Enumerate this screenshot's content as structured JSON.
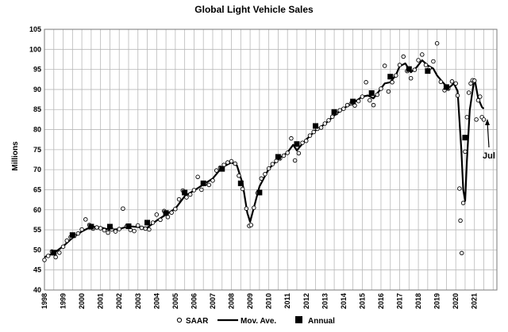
{
  "chart_data": {
    "type": "line",
    "title": "Global Light Vehicle Sales",
    "ylabel": "Millions",
    "xlabel": "",
    "ylim": [
      40,
      105
    ],
    "y_ticks": [
      "40",
      "45",
      "50",
      "55",
      "60",
      "65",
      "70",
      "75",
      "80",
      "85",
      "90",
      "95",
      "100",
      "105"
    ],
    "x_tick_labels": [
      "1998",
      "1999",
      "2000",
      "2001",
      "2002",
      "2003",
      "2004",
      "2005",
      "2006",
      "2007",
      "2008",
      "2009",
      "2010",
      "2011",
      "2012",
      "2013",
      "2014",
      "2015",
      "2016",
      "2017",
      "2018",
      "2019",
      "2020",
      "2021"
    ],
    "xlim": [
      1998,
      2022.2
    ],
    "grid": true,
    "legend_position": "bottom",
    "annotation": "Jul",
    "series": [
      {
        "name": "SAAR",
        "style": "open-circle-markers",
        "points": [
          [
            1998.0,
            47.5
          ],
          [
            1998.2,
            48.5
          ],
          [
            1998.4,
            49.6
          ],
          [
            1998.6,
            48.2
          ],
          [
            1998.8,
            49.3
          ],
          [
            1999.0,
            50.8
          ],
          [
            1999.2,
            52.3
          ],
          [
            1999.4,
            53.2
          ],
          [
            1999.6,
            53.5
          ],
          [
            1999.8,
            54.1
          ],
          [
            2000.0,
            55.1
          ],
          [
            2000.2,
            57.6
          ],
          [
            2000.4,
            56.2
          ],
          [
            2000.6,
            55.3
          ],
          [
            2000.8,
            55.6
          ],
          [
            2001.0,
            55.4
          ],
          [
            2001.2,
            54.9
          ],
          [
            2001.4,
            54.3
          ],
          [
            2001.6,
            55.1
          ],
          [
            2001.8,
            54.6
          ],
          [
            2002.0,
            55.2
          ],
          [
            2002.2,
            60.3
          ],
          [
            2002.4,
            55.9
          ],
          [
            2002.6,
            55.0
          ],
          [
            2002.8,
            54.7
          ],
          [
            2003.0,
            56.1
          ],
          [
            2003.2,
            55.5
          ],
          [
            2003.4,
            55.3
          ],
          [
            2003.6,
            55.1
          ],
          [
            2003.8,
            56.8
          ],
          [
            2004.0,
            58.8
          ],
          [
            2004.2,
            57.5
          ],
          [
            2004.4,
            59.7
          ],
          [
            2004.6,
            58.2
          ],
          [
            2004.8,
            59.3
          ],
          [
            2005.0,
            60.2
          ],
          [
            2005.2,
            62.6
          ],
          [
            2005.4,
            64.8
          ],
          [
            2005.6,
            63.1
          ],
          [
            2005.8,
            63.8
          ],
          [
            2006.0,
            64.9
          ],
          [
            2006.2,
            68.2
          ],
          [
            2006.4,
            65.0
          ],
          [
            2006.6,
            66.5
          ],
          [
            2006.8,
            66.2
          ],
          [
            2007.0,
            67.3
          ],
          [
            2007.2,
            69.8
          ],
          [
            2007.4,
            70.5
          ],
          [
            2007.6,
            71.2
          ],
          [
            2007.8,
            71.8
          ],
          [
            2008.0,
            72.1
          ],
          [
            2008.2,
            71.5
          ],
          [
            2008.4,
            68.5
          ],
          [
            2008.6,
            65.2
          ],
          [
            2008.8,
            60.3
          ],
          [
            2008.95,
            56.0
          ],
          [
            2009.05,
            56.2
          ],
          [
            2009.2,
            60.5
          ],
          [
            2009.4,
            64.2
          ],
          [
            2009.6,
            67.8
          ],
          [
            2009.8,
            68.9
          ],
          [
            2010.0,
            70.3
          ],
          [
            2010.2,
            71.4
          ],
          [
            2010.4,
            72.2
          ],
          [
            2010.6,
            72.8
          ],
          [
            2010.8,
            73.5
          ],
          [
            2011.0,
            74.2
          ],
          [
            2011.2,
            77.8
          ],
          [
            2011.4,
            72.3
          ],
          [
            2011.6,
            74.1
          ],
          [
            2011.8,
            76.7
          ],
          [
            2012.0,
            77.2
          ],
          [
            2012.2,
            78.5
          ],
          [
            2012.4,
            79.4
          ],
          [
            2012.6,
            80.2
          ],
          [
            2012.8,
            80.5
          ],
          [
            2013.0,
            81.5
          ],
          [
            2013.2,
            82.3
          ],
          [
            2013.4,
            83.2
          ],
          [
            2013.6,
            84.1
          ],
          [
            2013.8,
            84.8
          ],
          [
            2014.0,
            85.2
          ],
          [
            2014.2,
            86.1
          ],
          [
            2014.4,
            86.5
          ],
          [
            2014.6,
            86.0
          ],
          [
            2014.8,
            87.1
          ],
          [
            2015.0,
            88.2
          ],
          [
            2015.2,
            91.8
          ],
          [
            2015.4,
            87.3
          ],
          [
            2015.6,
            86.1
          ],
          [
            2015.8,
            88.7
          ],
          [
            2016.0,
            90.2
          ],
          [
            2016.2,
            95.9
          ],
          [
            2016.4,
            89.5
          ],
          [
            2016.6,
            91.8
          ],
          [
            2016.8,
            93.5
          ],
          [
            2017.0,
            96.1
          ],
          [
            2017.2,
            98.2
          ],
          [
            2017.4,
            94.6
          ],
          [
            2017.6,
            92.8
          ],
          [
            2017.8,
            94.9
          ],
          [
            2018.0,
            97.3
          ],
          [
            2018.2,
            98.7
          ],
          [
            2018.4,
            96.1
          ],
          [
            2018.6,
            95.3
          ],
          [
            2018.8,
            97.0
          ],
          [
            2019.0,
            101.5
          ],
          [
            2019.2,
            91.9
          ],
          [
            2019.4,
            89.8
          ],
          [
            2019.6,
            90.2
          ],
          [
            2019.8,
            92.0
          ],
          [
            2020.0,
            91.5
          ],
          [
            2020.1,
            88.5
          ],
          [
            2020.2,
            65.3
          ],
          [
            2020.25,
            57.3
          ],
          [
            2020.32,
            49.2
          ],
          [
            2020.4,
            61.7
          ],
          [
            2020.5,
            74.5
          ],
          [
            2020.6,
            83.1
          ],
          [
            2020.7,
            89.2
          ],
          [
            2020.8,
            91.5
          ],
          [
            2020.9,
            92.3
          ],
          [
            2021.0,
            92.2
          ],
          [
            2021.1,
            82.5
          ],
          [
            2021.2,
            87.3
          ],
          [
            2021.3,
            88.2
          ],
          [
            2021.4,
            83.1
          ],
          [
            2021.5,
            82.5
          ]
        ]
      },
      {
        "name": "Mov. Ave.",
        "style": "solid-line",
        "points": [
          [
            1998.0,
            48.2
          ],
          [
            1998.5,
            49.2
          ],
          [
            1999.0,
            50.9
          ],
          [
            1999.5,
            53.0
          ],
          [
            2000.0,
            54.6
          ],
          [
            2000.5,
            55.8
          ],
          [
            2001.0,
            55.6
          ],
          [
            2001.5,
            55.0
          ],
          [
            2002.0,
            55.2
          ],
          [
            2002.5,
            55.9
          ],
          [
            2003.0,
            55.7
          ],
          [
            2003.5,
            55.5
          ],
          [
            2004.0,
            57.3
          ],
          [
            2004.5,
            58.8
          ],
          [
            2005.0,
            60.3
          ],
          [
            2005.5,
            63.4
          ],
          [
            2006.0,
            64.8
          ],
          [
            2006.5,
            66.3
          ],
          [
            2007.0,
            67.8
          ],
          [
            2007.5,
            70.6
          ],
          [
            2008.0,
            71.8
          ],
          [
            2008.3,
            71.0
          ],
          [
            2008.6,
            66.5
          ],
          [
            2008.85,
            59.2
          ],
          [
            2009.0,
            57.0
          ],
          [
            2009.2,
            60.5
          ],
          [
            2009.5,
            65.8
          ],
          [
            2010.0,
            70.2
          ],
          [
            2010.5,
            72.6
          ],
          [
            2011.0,
            74.3
          ],
          [
            2011.3,
            76.2
          ],
          [
            2011.5,
            74.8
          ],
          [
            2011.8,
            76.5
          ],
          [
            2012.0,
            77.5
          ],
          [
            2012.5,
            79.8
          ],
          [
            2013.0,
            81.4
          ],
          [
            2013.5,
            83.5
          ],
          [
            2014.0,
            85.3
          ],
          [
            2014.5,
            86.6
          ],
          [
            2015.0,
            88.2
          ],
          [
            2015.3,
            88.5
          ],
          [
            2015.6,
            87.8
          ],
          [
            2015.9,
            89.6
          ],
          [
            2016.2,
            91.5
          ],
          [
            2016.5,
            91.8
          ],
          [
            2016.8,
            93.6
          ],
          [
            2017.0,
            95.8
          ],
          [
            2017.3,
            96.5
          ],
          [
            2017.6,
            94.3
          ],
          [
            2017.9,
            95.5
          ],
          [
            2018.2,
            97.3
          ],
          [
            2018.5,
            96.0
          ],
          [
            2018.8,
            95.2
          ],
          [
            2019.0,
            93.5
          ],
          [
            2019.3,
            91.8
          ],
          [
            2019.6,
            90.3
          ],
          [
            2019.9,
            91.5
          ],
          [
            2020.1,
            89.6
          ],
          [
            2020.3,
            75.0
          ],
          [
            2020.4,
            65.0
          ],
          [
            2020.5,
            62.2
          ],
          [
            2020.6,
            72.5
          ],
          [
            2020.75,
            84.8
          ],
          [
            2020.95,
            91.4
          ],
          [
            2021.05,
            91.6
          ],
          [
            2021.2,
            87.8
          ],
          [
            2021.4,
            85.6
          ],
          [
            2021.5,
            85.2
          ]
        ]
      },
      {
        "name": "Annual",
        "style": "filled-square-markers",
        "points": [
          [
            1998.5,
            49.3
          ],
          [
            1999.5,
            53.7
          ],
          [
            2000.5,
            55.8
          ],
          [
            2001.5,
            55.8
          ],
          [
            2002.5,
            55.9
          ],
          [
            2003.5,
            56.8
          ],
          [
            2004.5,
            59.2
          ],
          [
            2005.5,
            64.3
          ],
          [
            2006.5,
            66.6
          ],
          [
            2007.5,
            70.2
          ],
          [
            2008.5,
            66.6
          ],
          [
            2009.5,
            64.3
          ],
          [
            2010.5,
            73.2
          ],
          [
            2011.5,
            76.4
          ],
          [
            2012.5,
            80.9
          ],
          [
            2013.5,
            84.4
          ],
          [
            2014.5,
            87.0
          ],
          [
            2015.5,
            89.1
          ],
          [
            2016.5,
            93.2
          ],
          [
            2017.5,
            95.1
          ],
          [
            2018.5,
            94.6
          ],
          [
            2019.5,
            90.6
          ],
          [
            2020.5,
            78.0
          ]
        ]
      }
    ]
  }
}
